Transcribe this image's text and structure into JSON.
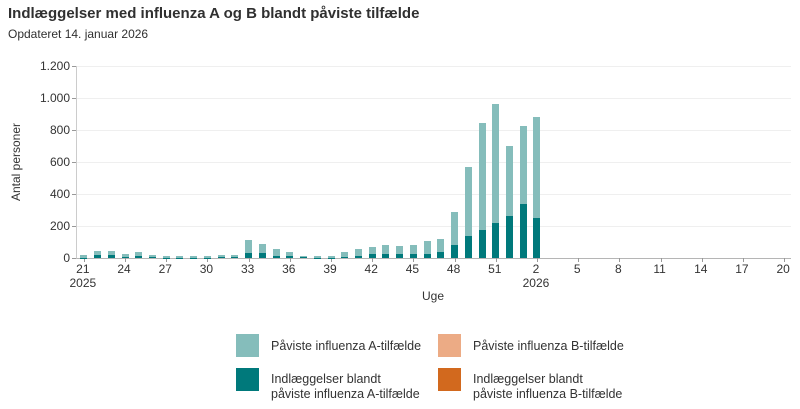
{
  "header": {
    "title": "Indlæggelser med influenza A og B blandt påviste tilfælde",
    "subtitle": "Opdateret 14. januar 2026"
  },
  "axes": {
    "y_label": "Antal personer",
    "x_label": "Uge"
  },
  "colors": {
    "detected_a": "#85BDBB",
    "hospitalized_a": "#00797B",
    "detected_b": "#ECAB85",
    "hospitalized_b": "#D2691E",
    "axis_text": "#333333",
    "gridline": "#EFEFEF"
  },
  "chart_data": {
    "type": "bar",
    "stacking": "overlay",
    "title": "Indlæggelser med influenza A og B blandt påviste tilfælde",
    "subtitle": "Opdateret 14. januar 2026",
    "xlabel": "Uge",
    "ylabel": "Antal personer",
    "ylim": [
      0,
      1200
    ],
    "grid": true,
    "legend_position": "bottom",
    "yticks": [
      0,
      200,
      400,
      600,
      800,
      1000,
      1200
    ],
    "ytick_labels": [
      "0",
      "200",
      "400",
      "600",
      "800",
      "1.000",
      "1.200"
    ],
    "x_total_slots": 52,
    "xtick_every": 3,
    "xticks": [
      {
        "label": "21",
        "year": "2025"
      },
      {
        "label": "24"
      },
      {
        "label": "27"
      },
      {
        "label": "30"
      },
      {
        "label": "33"
      },
      {
        "label": "36"
      },
      {
        "label": "39"
      },
      {
        "label": "42"
      },
      {
        "label": "45"
      },
      {
        "label": "48"
      },
      {
        "label": "51"
      },
      {
        "label": "2",
        "year": "2026"
      },
      {
        "label": "5"
      },
      {
        "label": "8"
      },
      {
        "label": "11"
      },
      {
        "label": "14"
      },
      {
        "label": "17"
      },
      {
        "label": "20"
      }
    ],
    "weeks": [
      "21",
      "22",
      "23",
      "24",
      "25",
      "26",
      "27",
      "28",
      "29",
      "30",
      "31",
      "32",
      "33",
      "34",
      "35",
      "36",
      "37",
      "38",
      "39",
      "40",
      "41",
      "42",
      "43",
      "44",
      "45",
      "46",
      "47",
      "48",
      "49",
      "50",
      "51",
      "52",
      "1",
      "2"
    ],
    "series": [
      {
        "name": "Påviste influenza A-tilfælde",
        "role": "detected-a",
        "color": "#85BDBB",
        "values": [
          20,
          45,
          45,
          25,
          40,
          20,
          12,
          12,
          12,
          12,
          20,
          18,
          115,
          90,
          55,
          35,
          15,
          10,
          10,
          40,
          55,
          68,
          80,
          75,
          82,
          105,
          118,
          285,
          570,
          845,
          965,
          700,
          825,
          880
        ]
      },
      {
        "name": "Indlæggelser blandt påviste influenza A-tilfælde",
        "role": "hospitalized-a",
        "color": "#00797B",
        "values": [
          3,
          20,
          18,
          8,
          15,
          5,
          3,
          3,
          3,
          3,
          5,
          5,
          30,
          30,
          15,
          10,
          4,
          3,
          3,
          8,
          12,
          25,
          22,
          25,
          22,
          28,
          35,
          80,
          140,
          175,
          220,
          265,
          340,
          250
        ]
      },
      {
        "name": "Påviste influenza B-tilfælde",
        "role": "detected-b",
        "color": "#ECAB85",
        "values": [
          0,
          0,
          0,
          0,
          0,
          0,
          0,
          0,
          0,
          0,
          0,
          0,
          0,
          0,
          0,
          0,
          0,
          0,
          0,
          0,
          0,
          0,
          0,
          0,
          0,
          0,
          0,
          0,
          0,
          0,
          0,
          0,
          0,
          0
        ]
      },
      {
        "name": "Indlæggelser blandt påviste influenza B-tilfælde",
        "role": "hospitalized-b",
        "color": "#D2691E",
        "values": [
          0,
          0,
          0,
          0,
          0,
          0,
          0,
          0,
          0,
          0,
          0,
          0,
          0,
          0,
          0,
          0,
          0,
          0,
          0,
          0,
          0,
          0,
          0,
          0,
          0,
          0,
          0,
          0,
          0,
          0,
          0,
          0,
          0,
          0
        ]
      }
    ],
    "legend": [
      {
        "key": "paaviste-a",
        "color": "#85BDBB",
        "lines": [
          "Påviste influenza A-tilfælde"
        ]
      },
      {
        "key": "paaviste-b",
        "color": "#ECAB85",
        "lines": [
          "Påviste influenza B-tilfælde"
        ]
      },
      {
        "key": "indlagte-a",
        "color": "#00797B",
        "lines": [
          "Indlæggelser blandt",
          "påviste influenza A-tilfælde"
        ]
      },
      {
        "key": "indlagte-b",
        "color": "#D2691E",
        "lines": [
          "Indlæggelser blandt",
          "påviste influenza B-tilfælde"
        ]
      }
    ]
  }
}
